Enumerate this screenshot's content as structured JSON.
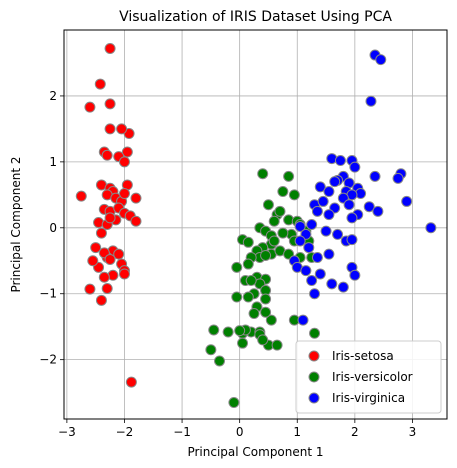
{
  "chart_data": {
    "type": "scatter",
    "title": "Visualization of IRIS Dataset Using PCA",
    "xlabel": "Principal Component 1",
    "ylabel": "Principal Component 2",
    "xlim": [
      -3.05,
      3.6
    ],
    "ylim": [
      -2.9,
      3.0
    ],
    "xticks": [
      -3,
      -2,
      -1,
      0,
      1,
      2,
      3
    ],
    "yticks": [
      -2,
      -1,
      0,
      1,
      2
    ],
    "xtick_labels": [
      "−3",
      "−2",
      "−1",
      "0",
      "1",
      "2",
      "3"
    ],
    "ytick_labels": [
      "−2",
      "−1",
      "0",
      "1",
      "2"
    ],
    "grid": true,
    "legend_position": "lower-right",
    "marker_edge_color": "#888888",
    "series": [
      {
        "name": "Iris-setosa",
        "color": "#ff0000",
        "x": [
          -2.25,
          -2.42,
          -2.6,
          -2.25,
          -1.92,
          -2.25,
          -2.05,
          -1.95,
          -2.35,
          -2.3,
          -2.1,
          -2.0,
          -2.4,
          -2.25,
          -2.2,
          -1.95,
          -2.3,
          -2.15,
          -2.05,
          -2.0,
          -1.8,
          -2.75,
          -2.35,
          -2.25,
          -2.1,
          -2.0,
          -1.9,
          -2.45,
          -2.3,
          -2.15,
          -2.25,
          -1.8,
          -2.4,
          -2.5,
          -2.2,
          -2.1,
          -2.3,
          -2.35,
          -2.25,
          -2.05,
          -2.0,
          -2.45,
          -2.55,
          -2.2,
          -2.35,
          -2.6,
          -2.0,
          -2.3,
          -2.4,
          -1.88
        ],
        "y": [
          2.72,
          2.18,
          1.83,
          1.88,
          1.43,
          1.5,
          1.5,
          1.15,
          1.15,
          1.1,
          1.08,
          1.0,
          0.65,
          0.6,
          0.55,
          0.65,
          0.5,
          0.45,
          0.4,
          0.52,
          0.45,
          0.48,
          0.28,
          0.25,
          0.3,
          0.22,
          0.18,
          0.08,
          0.05,
          0.12,
          0.15,
          0.1,
          -0.08,
          -0.3,
          -0.35,
          -0.4,
          -0.45,
          -0.38,
          -0.48,
          -0.55,
          -0.65,
          -0.6,
          -0.5,
          -0.72,
          -0.75,
          -0.93,
          -0.7,
          -0.92,
          -1.1,
          -2.34
        ]
      },
      {
        "name": "Iris-versicolor",
        "color": "#008000",
        "x": [
          0.4,
          0.85,
          0.75,
          0.95,
          0.5,
          0.65,
          0.7,
          0.6,
          0.85,
          1.0,
          1.05,
          1.15,
          0.9,
          0.35,
          0.45,
          0.55,
          0.75,
          0.95,
          1.2,
          0.55,
          0.6,
          0.05,
          0.15,
          0.4,
          0.3,
          0.55,
          0.7,
          0.85,
          1.05,
          1.25,
          0.35,
          0.2,
          -0.05,
          0.15,
          0.1,
          0.3,
          0.45,
          0.35,
          0.45,
          0.2,
          0.25,
          0.45,
          0.15,
          0.3,
          0.25,
          0.2,
          -0.05,
          0.05,
          0.35,
          0.55,
          0.45,
          0.1,
          0.0,
          0.35,
          0.5,
          0.05,
          -0.45,
          0.65,
          -0.2,
          -0.5,
          0.95,
          0.4,
          -0.35,
          -0.1,
          1.3,
          0.45
        ],
        "y": [
          0.82,
          0.78,
          0.55,
          0.5,
          0.35,
          0.2,
          0.25,
          0.1,
          0.12,
          0.1,
          0.05,
          -0.05,
          -0.1,
          0.0,
          -0.05,
          -0.12,
          -0.08,
          -0.2,
          -0.2,
          -0.25,
          -0.2,
          -0.18,
          -0.22,
          -0.3,
          -0.35,
          -0.4,
          -0.35,
          -0.4,
          -0.45,
          -0.45,
          -0.45,
          -0.45,
          -0.6,
          -0.55,
          -0.8,
          -0.75,
          -0.78,
          -0.85,
          -0.95,
          -0.8,
          -1.0,
          -1.08,
          -1.05,
          -1.2,
          -1.3,
          -1.58,
          -1.05,
          -1.6,
          -1.58,
          -1.4,
          -1.28,
          -1.55,
          -1.56,
          -1.62,
          -1.78,
          -1.75,
          -1.55,
          -1.78,
          -1.58,
          -1.85,
          -1.4,
          -1.7,
          -2.02,
          -2.65,
          -1.6,
          -0.42
        ]
      },
      {
        "name": "Iris-virginica",
        "color": "#0000ff",
        "x": [
          2.35,
          2.45,
          2.28,
          1.6,
          1.75,
          1.95,
          2.0,
          1.8,
          1.7,
          1.65,
          1.9,
          2.05,
          1.85,
          2.1,
          1.95,
          1.4,
          1.55,
          1.8,
          1.3,
          1.45,
          1.65,
          1.9,
          2.25,
          2.4,
          2.05,
          1.95,
          2.35,
          2.8,
          2.75,
          2.9,
          1.35,
          1.55,
          1.25,
          1.05,
          1.15,
          1.5,
          1.7,
          1.85,
          1.95,
          1.05,
          1.2,
          0.95,
          1.35,
          1.55,
          1.0,
          1.15,
          1.4,
          1.95,
          2.0,
          1.25,
          1.6,
          1.8,
          1.1,
          1.3,
          3.32
        ],
        "y": [
          2.62,
          2.55,
          1.92,
          1.05,
          1.02,
          1.02,
          0.92,
          0.78,
          0.72,
          0.7,
          0.68,
          0.6,
          0.55,
          0.52,
          0.5,
          0.62,
          0.55,
          0.45,
          0.35,
          0.4,
          0.3,
          0.35,
          0.32,
          0.25,
          0.2,
          0.15,
          0.78,
          0.82,
          0.75,
          0.4,
          0.25,
          0.2,
          0.05,
          0.02,
          -0.1,
          -0.05,
          -0.1,
          -0.2,
          -0.18,
          -0.2,
          -0.3,
          -0.5,
          -0.45,
          -0.4,
          -0.6,
          -0.65,
          -0.7,
          -0.6,
          -0.72,
          -0.8,
          -0.85,
          -0.9,
          -1.4,
          -1.0,
          0.0
        ]
      }
    ]
  }
}
